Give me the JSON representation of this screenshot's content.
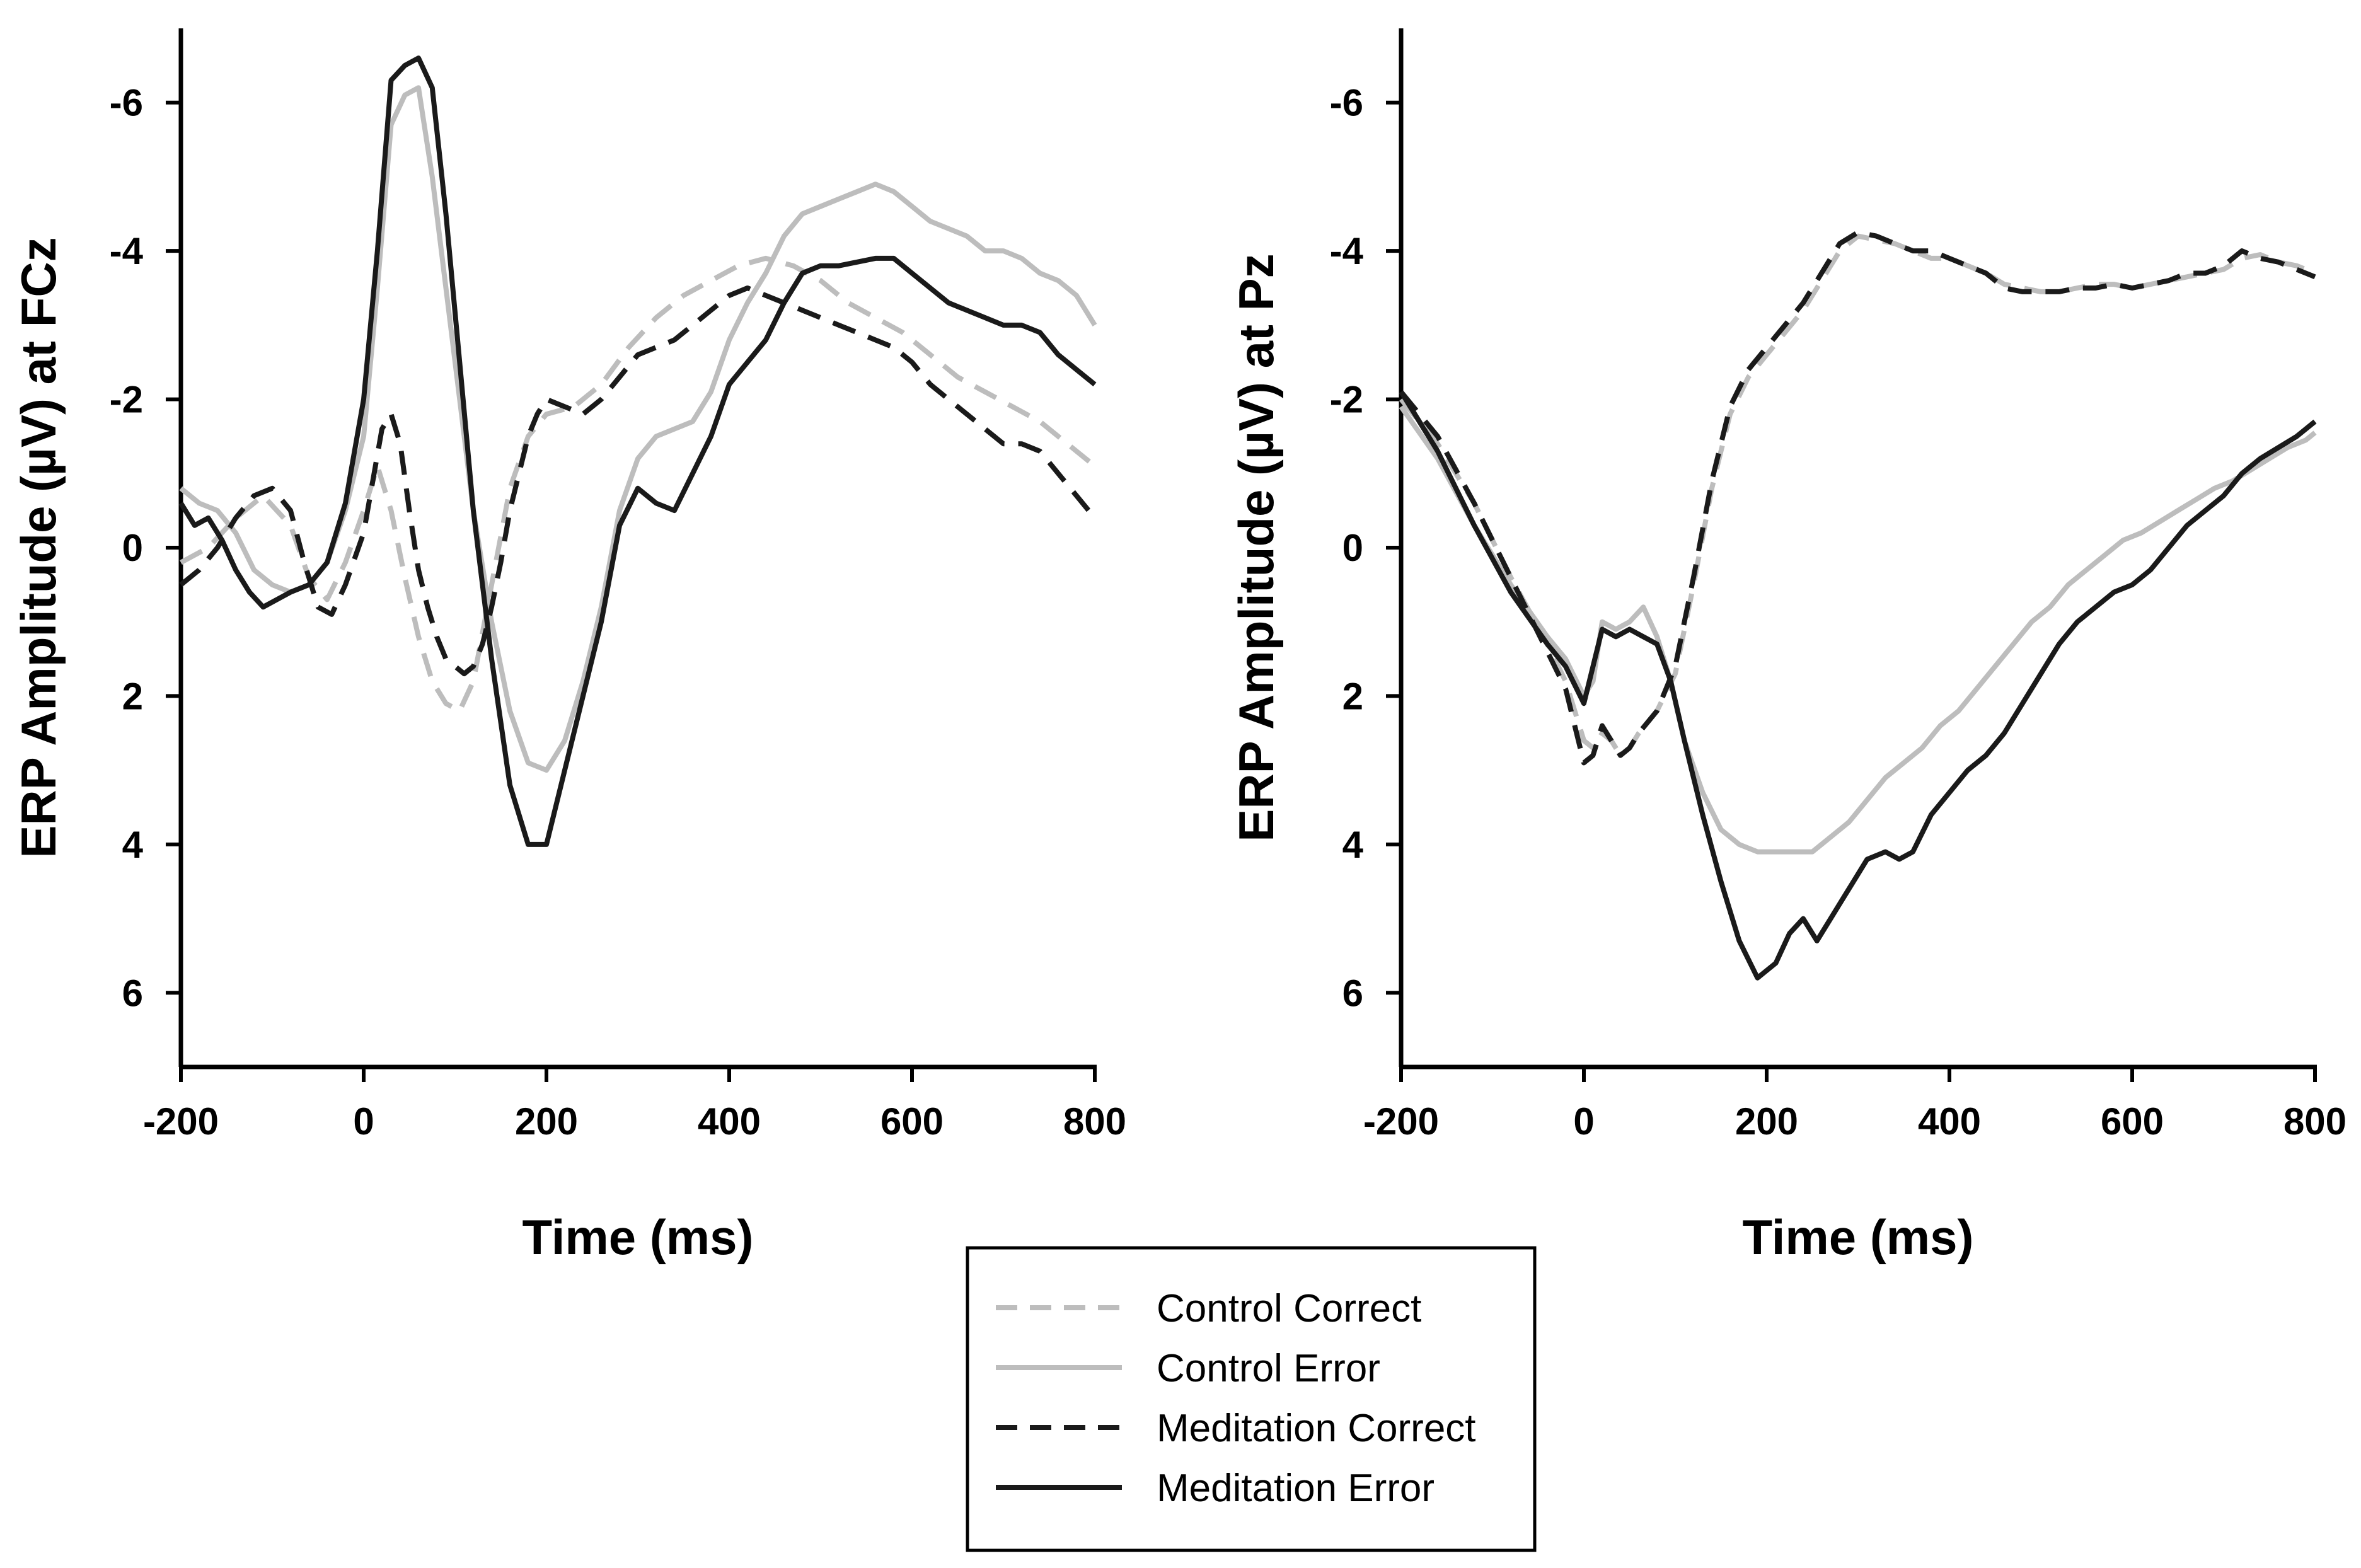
{
  "chart_data": [
    {
      "type": "line",
      "title": "",
      "xlabel": "Time (ms)",
      "ylabel": "ERP Amplitude (µV) at FCz",
      "xlim": [
        -200,
        800
      ],
      "ylim": [
        7,
        -7
      ],
      "y_inverted": true,
      "xticks": [
        -200,
        0,
        200,
        400,
        600,
        800
      ],
      "xtick_labels": [
        "-200",
        "0",
        "200",
        "400",
        "600",
        "800"
      ],
      "yticks": [
        -6,
        -4,
        -2,
        0,
        2,
        4,
        6
      ],
      "ytick_labels": [
        "-6",
        "-4",
        "-2",
        "0",
        "2",
        "4",
        "6"
      ],
      "grid": false,
      "series": [
        {
          "name": "Control Correct",
          "color": "#bdbdbd",
          "dash": "dashed",
          "x": [
            -200,
            -170,
            -140,
            -110,
            -80,
            -60,
            -40,
            -20,
            0,
            15,
            30,
            45,
            60,
            75,
            90,
            105,
            120,
            140,
            160,
            180,
            200,
            230,
            260,
            290,
            320,
            350,
            380,
            410,
            440,
            470,
            500,
            530,
            560,
            590,
            620,
            650,
            680,
            710,
            740,
            770,
            800
          ],
          "y": [
            0.2,
            0.0,
            -0.4,
            -0.7,
            -0.3,
            0.4,
            0.7,
            0.2,
            -0.5,
            -1.1,
            -0.5,
            0.4,
            1.2,
            1.8,
            2.1,
            2.2,
            1.8,
            0.5,
            -0.8,
            -1.5,
            -1.8,
            -1.9,
            -2.2,
            -2.7,
            -3.1,
            -3.4,
            -3.6,
            -3.8,
            -3.9,
            -3.8,
            -3.6,
            -3.3,
            -3.1,
            -2.9,
            -2.6,
            -2.3,
            -2.1,
            -1.9,
            -1.7,
            -1.4,
            -1.1
          ]
        },
        {
          "name": "Control Error",
          "color": "#bdbdbd",
          "dash": "solid",
          "x": [
            -200,
            -180,
            -160,
            -140,
            -120,
            -100,
            -80,
            -60,
            -40,
            -20,
            0,
            15,
            30,
            45,
            60,
            75,
            90,
            105,
            120,
            140,
            160,
            180,
            200,
            220,
            240,
            260,
            280,
            300,
            320,
            340,
            360,
            380,
            400,
            420,
            440,
            460,
            480,
            500,
            520,
            540,
            560,
            580,
            600,
            620,
            640,
            660,
            680,
            700,
            720,
            740,
            760,
            780,
            800
          ],
          "y": [
            -0.8,
            -0.6,
            -0.5,
            -0.2,
            0.3,
            0.5,
            0.6,
            0.5,
            0.2,
            -0.5,
            -1.5,
            -3.5,
            -5.7,
            -6.1,
            -6.2,
            -5.0,
            -3.5,
            -2.0,
            -0.5,
            1.0,
            2.2,
            2.9,
            3.0,
            2.6,
            1.8,
            0.8,
            -0.5,
            -1.2,
            -1.5,
            -1.6,
            -1.7,
            -2.1,
            -2.8,
            -3.3,
            -3.7,
            -4.2,
            -4.5,
            -4.6,
            -4.7,
            -4.8,
            -4.9,
            -4.8,
            -4.6,
            -4.4,
            -4.3,
            -4.2,
            -4.0,
            -4.0,
            -3.9,
            -3.7,
            -3.6,
            -3.4,
            -3.0
          ]
        },
        {
          "name": "Meditation Correct",
          "color": "#1a1a1a",
          "dash": "dashed",
          "x": [
            -200,
            -180,
            -160,
            -140,
            -120,
            -100,
            -80,
            -65,
            -50,
            -35,
            -20,
            0,
            10,
            20,
            30,
            40,
            50,
            60,
            70,
            80,
            90,
            100,
            110,
            120,
            130,
            140,
            150,
            160,
            170,
            180,
            190,
            200,
            220,
            240,
            260,
            280,
            300,
            320,
            340,
            360,
            380,
            400,
            420,
            440,
            460,
            480,
            500,
            520,
            540,
            560,
            580,
            600,
            620,
            640,
            660,
            680,
            700,
            720,
            740,
            760,
            780,
            800
          ],
          "y": [
            0.5,
            0.3,
            0.0,
            -0.4,
            -0.7,
            -0.8,
            -0.5,
            0.2,
            0.8,
            0.9,
            0.5,
            -0.2,
            -0.9,
            -1.6,
            -1.8,
            -1.4,
            -0.5,
            0.3,
            0.8,
            1.2,
            1.5,
            1.6,
            1.7,
            1.6,
            1.3,
            0.8,
            0.2,
            -0.5,
            -1.0,
            -1.5,
            -1.8,
            -2.0,
            -1.9,
            -1.8,
            -2.0,
            -2.3,
            -2.6,
            -2.7,
            -2.8,
            -3.0,
            -3.2,
            -3.4,
            -3.5,
            -3.4,
            -3.3,
            -3.2,
            -3.1,
            -3.0,
            -2.9,
            -2.8,
            -2.7,
            -2.5,
            -2.2,
            -2.0,
            -1.8,
            -1.6,
            -1.4,
            -1.4,
            -1.3,
            -1.0,
            -0.7,
            -0.4
          ]
        },
        {
          "name": "Meditation Error",
          "color": "#1a1a1a",
          "dash": "solid",
          "x": [
            -200,
            -185,
            -170,
            -155,
            -140,
            -125,
            -110,
            -95,
            -80,
            -60,
            -40,
            -20,
            0,
            15,
            30,
            45,
            60,
            75,
            90,
            105,
            120,
            140,
            160,
            180,
            200,
            220,
            240,
            260,
            280,
            300,
            320,
            340,
            360,
            380,
            400,
            420,
            440,
            460,
            480,
            500,
            520,
            540,
            560,
            580,
            600,
            620,
            640,
            660,
            680,
            700,
            720,
            740,
            760,
            780,
            800
          ],
          "y": [
            -0.6,
            -0.3,
            -0.4,
            -0.1,
            0.3,
            0.6,
            0.8,
            0.7,
            0.6,
            0.5,
            0.2,
            -0.6,
            -2.0,
            -4.0,
            -6.3,
            -6.5,
            -6.6,
            -6.2,
            -4.5,
            -2.5,
            -0.5,
            1.5,
            3.2,
            4.0,
            4.0,
            3.0,
            2.0,
            1.0,
            -0.3,
            -0.8,
            -0.6,
            -0.5,
            -1.0,
            -1.5,
            -2.2,
            -2.5,
            -2.8,
            -3.3,
            -3.7,
            -3.8,
            -3.8,
            -3.85,
            -3.9,
            -3.9,
            -3.7,
            -3.5,
            -3.3,
            -3.2,
            -3.1,
            -3.0,
            -3.0,
            -2.9,
            -2.6,
            -2.4,
            -2.2
          ]
        }
      ]
    },
    {
      "type": "line",
      "title": "",
      "xlabel": "Time (ms)",
      "ylabel": "ERP Amplitude (µV) at Pz",
      "xlim": [
        -200,
        800
      ],
      "ylim": [
        7,
        -7
      ],
      "y_inverted": true,
      "xticks": [
        -200,
        0,
        200,
        400,
        600,
        800
      ],
      "xtick_labels": [
        "-200",
        "0",
        "200",
        "400",
        "600",
        "800"
      ],
      "yticks": [
        -6,
        -4,
        -2,
        0,
        2,
        4,
        6
      ],
      "ytick_labels": [
        "-6",
        "-4",
        "-2",
        "0",
        "2",
        "4",
        "6"
      ],
      "grid": false,
      "series": [
        {
          "name": "Control Correct",
          "color": "#bdbdbd",
          "dash": "dashed",
          "x": [
            -200,
            -160,
            -120,
            -80,
            -40,
            -20,
            0,
            10,
            20,
            30,
            40,
            50,
            60,
            80,
            100,
            120,
            140,
            160,
            180,
            200,
            220,
            240,
            260,
            280,
            300,
            320,
            340,
            360,
            380,
            400,
            420,
            440,
            460,
            480,
            500,
            520,
            540,
            560,
            580,
            600,
            620,
            640,
            660,
            680,
            700,
            720,
            740,
            760,
            780,
            800
          ],
          "y": [
            -2.0,
            -1.4,
            -0.6,
            0.4,
            1.3,
            1.8,
            2.6,
            2.7,
            2.5,
            2.6,
            2.8,
            2.7,
            2.5,
            2.2,
            1.7,
            0.5,
            -0.8,
            -1.8,
            -2.3,
            -2.6,
            -2.9,
            -3.2,
            -3.6,
            -4.0,
            -4.2,
            -4.15,
            -4.1,
            -4.0,
            -3.9,
            -3.9,
            -3.8,
            -3.7,
            -3.55,
            -3.5,
            -3.45,
            -3.45,
            -3.5,
            -3.55,
            -3.55,
            -3.5,
            -3.55,
            -3.6,
            -3.65,
            -3.7,
            -3.75,
            -3.9,
            -3.95,
            -3.85,
            -3.8,
            -3.7
          ]
        },
        {
          "name": "Control Error",
          "color": "#bdbdbd",
          "dash": "solid",
          "x": [
            -200,
            -160,
            -120,
            -80,
            -40,
            -20,
            0,
            10,
            20,
            35,
            50,
            65,
            80,
            95,
            110,
            130,
            150,
            170,
            190,
            210,
            230,
            250,
            270,
            290,
            310,
            330,
            350,
            370,
            390,
            410,
            430,
            450,
            470,
            490,
            510,
            530,
            550,
            570,
            590,
            610,
            630,
            650,
            670,
            690,
            710,
            730,
            750,
            770,
            790,
            800
          ],
          "y": [
            -1.9,
            -1.2,
            -0.3,
            0.5,
            1.2,
            1.5,
            2.0,
            1.8,
            1.0,
            1.1,
            1.0,
            0.8,
            1.2,
            1.8,
            2.6,
            3.3,
            3.8,
            4.0,
            4.1,
            4.1,
            4.1,
            4.1,
            3.9,
            3.7,
            3.4,
            3.1,
            2.9,
            2.7,
            2.4,
            2.2,
            1.9,
            1.6,
            1.3,
            1.0,
            0.8,
            0.5,
            0.3,
            0.1,
            -0.1,
            -0.2,
            -0.35,
            -0.5,
            -0.65,
            -0.8,
            -0.9,
            -1.05,
            -1.2,
            -1.35,
            -1.45,
            -1.55
          ]
        },
        {
          "name": "Meditation Correct",
          "color": "#1a1a1a",
          "dash": "dashed",
          "x": [
            -200,
            -160,
            -120,
            -80,
            -40,
            -20,
            0,
            10,
            20,
            30,
            40,
            50,
            60,
            80,
            100,
            120,
            140,
            160,
            180,
            200,
            220,
            240,
            260,
            280,
            300,
            320,
            340,
            360,
            380,
            400,
            420,
            440,
            460,
            480,
            500,
            520,
            540,
            560,
            580,
            600,
            620,
            640,
            660,
            680,
            700,
            720,
            740,
            760,
            780,
            800
          ],
          "y": [
            -2.1,
            -1.5,
            -0.6,
            0.4,
            1.4,
            1.9,
            2.9,
            2.8,
            2.4,
            2.6,
            2.8,
            2.7,
            2.5,
            2.2,
            1.6,
            0.4,
            -0.9,
            -1.9,
            -2.4,
            -2.7,
            -3.0,
            -3.3,
            -3.7,
            -4.1,
            -4.25,
            -4.2,
            -4.1,
            -4.0,
            -4.0,
            -3.9,
            -3.8,
            -3.7,
            -3.5,
            -3.45,
            -3.45,
            -3.45,
            -3.5,
            -3.5,
            -3.55,
            -3.5,
            -3.55,
            -3.6,
            -3.7,
            -3.7,
            -3.8,
            -4.0,
            -3.9,
            -3.85,
            -3.75,
            -3.65
          ]
        },
        {
          "name": "Meditation Error",
          "color": "#1a1a1a",
          "dash": "solid",
          "x": [
            -200,
            -160,
            -120,
            -80,
            -40,
            -20,
            0,
            10,
            20,
            35,
            50,
            65,
            80,
            95,
            110,
            130,
            150,
            170,
            190,
            210,
            225,
            240,
            255,
            270,
            290,
            310,
            330,
            345,
            360,
            380,
            400,
            420,
            440,
            460,
            480,
            500,
            520,
            540,
            560,
            580,
            600,
            620,
            640,
            660,
            680,
            700,
            720,
            740,
            760,
            780,
            800
          ],
          "y": [
            -2.1,
            -1.3,
            -0.3,
            0.6,
            1.3,
            1.6,
            2.1,
            1.6,
            1.1,
            1.2,
            1.1,
            1.2,
            1.3,
            1.8,
            2.6,
            3.6,
            4.5,
            5.3,
            5.8,
            5.6,
            5.2,
            5.0,
            5.3,
            5.0,
            4.6,
            4.2,
            4.1,
            4.2,
            4.1,
            3.6,
            3.3,
            3.0,
            2.8,
            2.5,
            2.1,
            1.7,
            1.3,
            1.0,
            0.8,
            0.6,
            0.5,
            0.3,
            0.0,
            -0.3,
            -0.5,
            -0.7,
            -1.0,
            -1.2,
            -1.35,
            -1.5,
            -1.7
          ]
        }
      ]
    }
  ],
  "legend": {
    "items": [
      {
        "label": "Control Correct",
        "color": "#bdbdbd",
        "dash": "dashed"
      },
      {
        "label": "Control Error",
        "color": "#bdbdbd",
        "dash": "solid"
      },
      {
        "label": "Meditation Correct",
        "color": "#1a1a1a",
        "dash": "dashed"
      },
      {
        "label": "Meditation Error",
        "color": "#1a1a1a",
        "dash": "solid"
      }
    ]
  }
}
